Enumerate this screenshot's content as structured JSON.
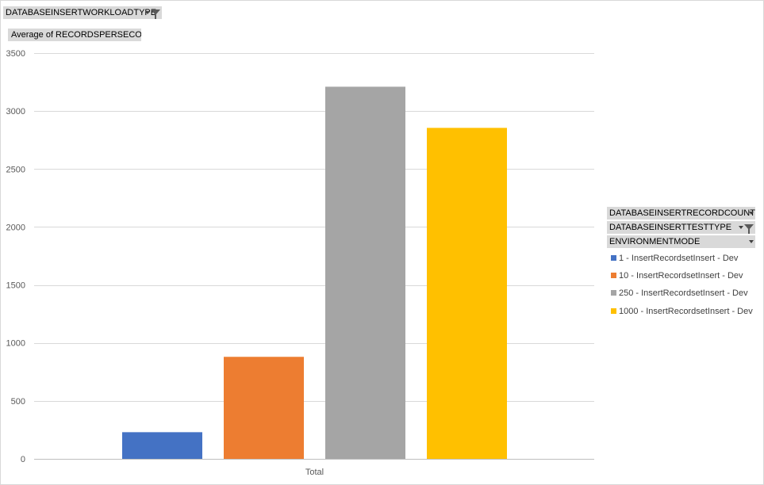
{
  "field_buttons": {
    "workload_type": "DATABASEINSERTWORKLOADTYPE",
    "measure": "Average of RECORDSPERSECOND",
    "record_count": "DATABASEINSERTRECORDCOUNT",
    "test_type": "DATABASEINSERTTESTTYPE",
    "environment_mode": "ENVIRONMENTMODE"
  },
  "icons": {
    "dropdown": "chevron-down-icon",
    "filter": "filter-icon"
  },
  "chart_data": {
    "type": "bar",
    "categories": [
      "Total"
    ],
    "series": [
      {
        "name": "1 - InsertRecordsetInsert - Dev",
        "values": [
          230
        ],
        "color": "#4472c4"
      },
      {
        "name": "10 - InsertRecordsetInsert - Dev",
        "values": [
          880
        ],
        "color": "#ed7d31"
      },
      {
        "name": "250 - InsertRecordsetInsert - Dev",
        "values": [
          3210
        ],
        "color": "#a5a5a5"
      },
      {
        "name": "1000 - InsertRecordsetInsert - Dev",
        "values": [
          2855
        ],
        "color": "#ffc000"
      }
    ],
    "ylim": [
      0,
      3500
    ],
    "yticks": [
      0,
      500,
      1000,
      1500,
      2000,
      2500,
      3000,
      3500
    ],
    "grid": true,
    "legend_position": "right"
  }
}
